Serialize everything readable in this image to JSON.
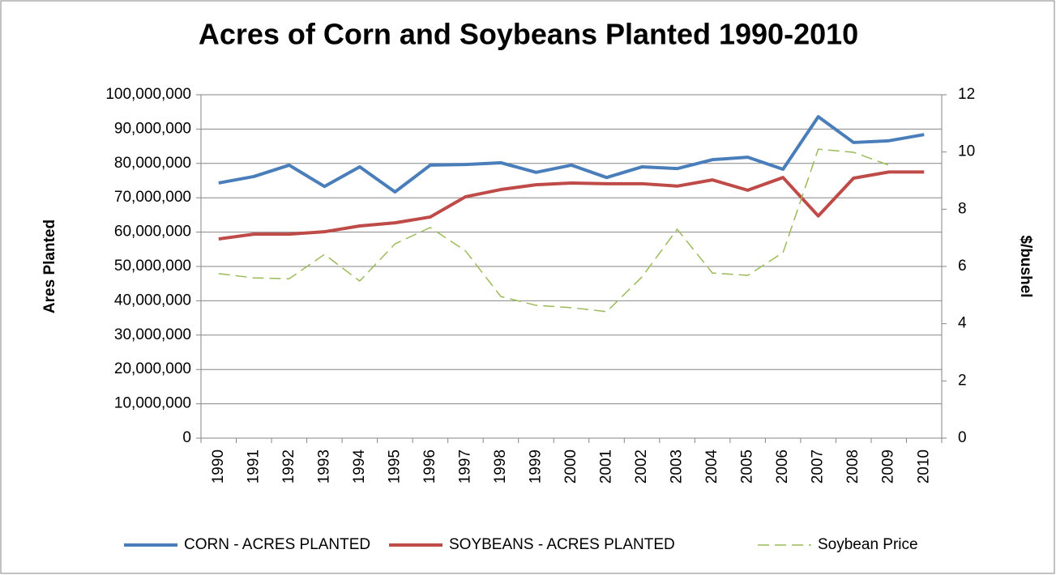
{
  "chart_data": {
    "type": "line",
    "title": "Acres of Corn and Soybeans Planted 1990-2010",
    "y_label": "Ares Planted",
    "y2_label": "$/bushel",
    "categories": [
      "1990",
      "1991",
      "1992",
      "1993",
      "1994",
      "1995",
      "1996",
      "1997",
      "1998",
      "1999",
      "2000",
      "2001",
      "2002",
      "2003",
      "2004",
      "2005",
      "2006",
      "2007",
      "2008",
      "2009",
      "2010"
    ],
    "series": [
      {
        "name": "CORN - ACRES PLANTED",
        "color": "#4a7ebb",
        "values": [
          74300000,
          76200000,
          79500000,
          73300000,
          79000000,
          71700000,
          79500000,
          79700000,
          80200000,
          77400000,
          79500000,
          75900000,
          79000000,
          78500000,
          81100000,
          81800000,
          78300000,
          93600000,
          86100000,
          86600000,
          88400000
        ]
      },
      {
        "name": "SOYBEANS - ACRES PLANTED",
        "color": "#be4b48",
        "values": [
          58000000,
          59400000,
          59400000,
          60100000,
          61800000,
          62700000,
          64400000,
          70300000,
          72400000,
          73800000,
          74300000,
          74100000,
          74100000,
          73400000,
          75200000,
          72200000,
          75900000,
          64700000,
          75700000,
          77500000,
          77500000
        ]
      },
      {
        "name": "Soybean Price",
        "color": "#9bbb59",
        "axis": "y2",
        "dashed": true,
        "values": [
          5.75,
          5.6,
          5.57,
          6.42,
          5.49,
          6.79,
          7.36,
          6.54,
          4.95,
          4.64,
          4.56,
          4.42,
          5.63,
          7.3,
          5.77,
          5.69,
          6.48,
          10.1,
          9.99,
          9.54,
          null
        ]
      }
    ],
    "ylim": [
      0,
      100000000
    ],
    "yticks": [
      {
        "value": 0,
        "label": "0"
      },
      {
        "value": 10000000,
        "label": "10,000,000"
      },
      {
        "value": 20000000,
        "label": "20,000,000"
      },
      {
        "value": 30000000,
        "label": "30,000,000"
      },
      {
        "value": 40000000,
        "label": "40,000,000"
      },
      {
        "value": 50000000,
        "label": "50,000,000"
      },
      {
        "value": 60000000,
        "label": "60,000,000"
      },
      {
        "value": 70000000,
        "label": "70,000,000"
      },
      {
        "value": 80000000,
        "label": "80,000,000"
      },
      {
        "value": 90000000,
        "label": "90,000,000"
      },
      {
        "value": 100000000,
        "label": "100,000,000"
      }
    ],
    "y2lim": [
      0,
      12
    ],
    "y2ticks": [
      0,
      2,
      4,
      6,
      8,
      10,
      12
    ],
    "grid": true,
    "legend": "bottom"
  }
}
